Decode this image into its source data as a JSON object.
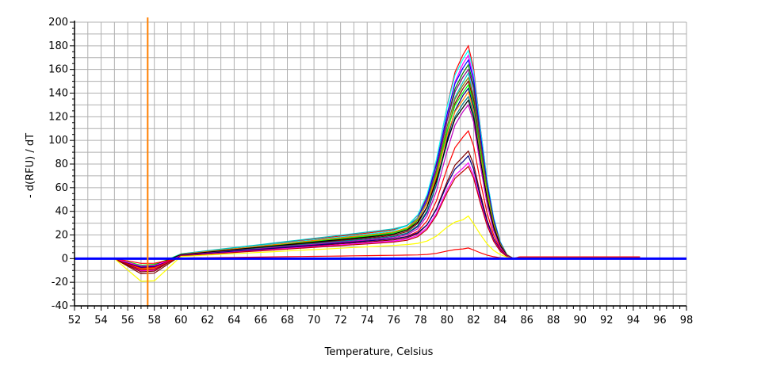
{
  "chart_data": {
    "type": "line",
    "title": "",
    "xlabel": "Temperature, Celsius",
    "ylabel": "- d(RFU) / dT",
    "xlim": [
      52,
      98
    ],
    "ylim": [
      -40,
      200
    ],
    "x_ticks": [
      52,
      54,
      56,
      58,
      60,
      62,
      64,
      66,
      68,
      70,
      72,
      74,
      76,
      78,
      80,
      82,
      84,
      86,
      88,
      90,
      92,
      94,
      96,
      98
    ],
    "y_ticks": [
      -40,
      -20,
      0,
      20,
      40,
      60,
      80,
      100,
      120,
      140,
      160,
      180,
      200
    ],
    "grid": true,
    "threshold_x": 57.5,
    "threshold_color": "#ff8000",
    "baseline_color": "#0000ff",
    "x": [
      55,
      56,
      57,
      58,
      59,
      60,
      61,
      62,
      63,
      64,
      65,
      66,
      67,
      68,
      69,
      70,
      71,
      72,
      73,
      74,
      75,
      76,
      77,
      77.8,
      78.5,
      79.2,
      80,
      80.6,
      81.2,
      81.6,
      82,
      82.5,
      83,
      83.5,
      84,
      84.5,
      85,
      85.5,
      86,
      87,
      88,
      90,
      92,
      94,
      94.5
    ],
    "series": [
      {
        "color": "#ff0000",
        "peak": 180,
        "shoulder": 26,
        "dip": -11,
        "width": 1.55
      },
      {
        "color": "#00ffff",
        "peak": 176,
        "shoulder": 25,
        "dip": -8,
        "width": 1.6
      },
      {
        "color": "#ff00ff",
        "peak": 172,
        "shoulder": 24,
        "dip": -13,
        "width": 1.5
      },
      {
        "color": "#0000ff",
        "peak": 168,
        "shoulder": 23,
        "dip": -9,
        "width": 1.6
      },
      {
        "color": "#008000",
        "peak": 164,
        "shoulder": 24,
        "dip": -10,
        "width": 1.55
      },
      {
        "color": "#800080",
        "peak": 160,
        "shoulder": 22,
        "dip": -12,
        "width": 1.6
      },
      {
        "color": "#00c0c0",
        "peak": 157,
        "shoulder": 27,
        "dip": -8,
        "width": 1.5
      },
      {
        "color": "#808000",
        "peak": 153,
        "shoulder": 22,
        "dip": -9,
        "width": 1.6
      },
      {
        "color": "#800000",
        "peak": 150,
        "shoulder": 21,
        "dip": -14,
        "width": 1.55
      },
      {
        "color": "#00ff00",
        "peak": 147,
        "shoulder": 23,
        "dip": -7,
        "width": 1.6
      },
      {
        "color": "#000080",
        "peak": 144,
        "shoulder": 20,
        "dip": -10,
        "width": 1.5
      },
      {
        "color": "#ff8000",
        "peak": 141,
        "shoulder": 24,
        "dip": -11,
        "width": 1.6
      },
      {
        "color": "#008080",
        "peak": 137,
        "shoulder": 20,
        "dip": -9,
        "width": 1.55
      },
      {
        "color": "#000000",
        "peak": 134,
        "shoulder": 22,
        "dip": -8,
        "width": 1.6
      },
      {
        "color": "#c000c0",
        "peak": 130,
        "shoulder": 19,
        "dip": -12,
        "width": 1.5
      },
      {
        "color": "#ff0000",
        "peak": 108,
        "shoulder": 18,
        "dip": -10,
        "width": 1.5
      },
      {
        "color": "#800000",
        "peak": 91,
        "shoulder": 17,
        "dip": -16,
        "width": 1.5
      },
      {
        "color": "#000080",
        "peak": 87,
        "shoulder": 18,
        "dip": -9,
        "width": 1.5
      },
      {
        "color": "#ff00ff",
        "peak": 81,
        "shoulder": 16,
        "dip": -8,
        "width": 1.5
      },
      {
        "color": "#c00000",
        "peak": 78,
        "shoulder": 15,
        "dip": -12,
        "width": 1.5
      },
      {
        "color": "#ffff00",
        "peak": 36,
        "shoulder": 12,
        "dip": -24,
        "width": 1.4
      },
      {
        "color": "#ff0000",
        "peak": 9,
        "shoulder": 3,
        "dip": -5,
        "width": 1.3
      }
    ]
  }
}
